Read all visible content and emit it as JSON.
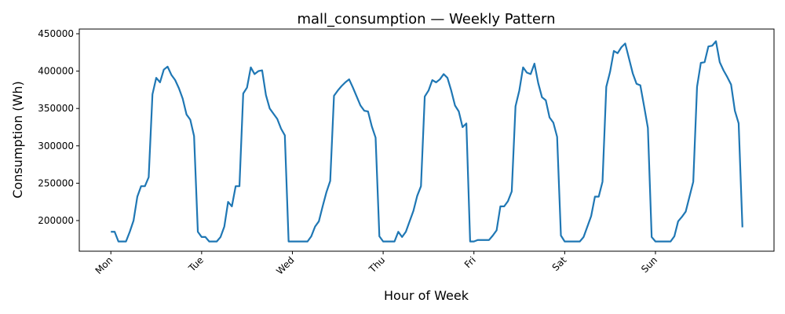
{
  "chart_data": {
    "type": "line",
    "title": "mall_consumption — Weekly Pattern",
    "x_label": "Hour of Week",
    "y_label": "Consumption (Wh)",
    "color": "#1f77b4",
    "x": [
      0,
      1,
      2,
      3,
      4,
      5,
      6,
      7,
      8,
      9,
      10,
      11,
      12,
      13,
      14,
      15,
      16,
      17,
      18,
      19,
      20,
      21,
      22,
      23,
      24,
      25,
      26,
      27,
      28,
      29,
      30,
      31,
      32,
      33,
      34,
      35,
      36,
      37,
      38,
      39,
      40,
      41,
      42,
      43,
      44,
      45,
      46,
      47,
      48,
      49,
      50,
      51,
      52,
      53,
      54,
      55,
      56,
      57,
      58,
      59,
      60,
      61,
      62,
      63,
      64,
      65,
      66,
      67,
      68,
      69,
      70,
      71,
      72,
      73,
      74,
      75,
      76,
      77,
      78,
      79,
      80,
      81,
      82,
      83,
      84,
      85,
      86,
      87,
      88,
      89,
      90,
      91,
      92,
      93,
      94,
      95,
      96,
      97,
      98,
      99,
      100,
      101,
      102,
      103,
      104,
      105,
      106,
      107,
      108,
      109,
      110,
      111,
      112,
      113,
      114,
      115,
      116,
      117,
      118,
      119,
      120,
      121,
      122,
      123,
      124,
      125,
      126,
      127,
      128,
      129,
      130,
      131,
      132,
      133,
      134,
      135,
      136,
      137,
      138,
      139,
      140,
      141,
      142,
      143,
      144,
      145,
      146,
      147,
      148,
      149,
      150,
      151,
      152,
      153,
      154,
      155,
      156,
      157,
      158,
      159,
      160,
      161,
      162,
      163,
      164,
      165,
      166,
      167
    ],
    "values": [
      185000,
      185000,
      172000,
      172000,
      172000,
      185000,
      200000,
      232000,
      246000,
      246000,
      258000,
      369000,
      391000,
      385000,
      402000,
      406000,
      395000,
      388000,
      377000,
      363000,
      342000,
      335000,
      313000,
      185000,
      178000,
      178000,
      172000,
      172000,
      172000,
      178000,
      192000,
      225000,
      219000,
      246000,
      246000,
      370000,
      378000,
      405000,
      396000,
      400000,
      401000,
      368000,
      350000,
      343000,
      336000,
      323000,
      314000,
      172000,
      172000,
      172000,
      172000,
      172000,
      172000,
      179000,
      192000,
      199000,
      219000,
      238000,
      253000,
      367000,
      374000,
      380000,
      385000,
      389000,
      378000,
      366000,
      354000,
      347000,
      346000,
      326000,
      311000,
      179000,
      172000,
      172000,
      172000,
      172000,
      185000,
      178000,
      185000,
      199000,
      213000,
      233000,
      246000,
      366000,
      374000,
      388000,
      385000,
      389000,
      396000,
      391000,
      374000,
      354000,
      346000,
      325000,
      330000,
      172000,
      172000,
      174000,
      174000,
      174000,
      174000,
      180000,
      187000,
      219000,
      219000,
      226000,
      239000,
      353000,
      374000,
      405000,
      398000,
      396000,
      410000,
      384000,
      365000,
      361000,
      338000,
      331000,
      312000,
      180000,
      172000,
      172000,
      172000,
      172000,
      172000,
      178000,
      192000,
      206000,
      232000,
      232000,
      252000,
      379000,
      399000,
      427000,
      424000,
      432000,
      437000,
      417000,
      397000,
      383000,
      381000,
      353000,
      324000,
      178000,
      172000,
      172000,
      172000,
      172000,
      172000,
      179000,
      199000,
      205000,
      212000,
      232000,
      252000,
      379000,
      411000,
      412000,
      433000,
      434000,
      440000,
      412000,
      401000,
      392000,
      382000,
      347000,
      330000,
      191000
    ],
    "xlim": [
      -8.35,
      175.35
    ],
    "xticks": [
      {
        "value": 0,
        "label": "Mon"
      },
      {
        "value": 24,
        "label": "Tue"
      },
      {
        "value": 48,
        "label": "Wed"
      },
      {
        "value": 72,
        "label": "Thu"
      },
      {
        "value": 96,
        "label": "Fri"
      },
      {
        "value": 120,
        "label": "Sat"
      },
      {
        "value": 144,
        "label": "Sun"
      }
    ],
    "ylim": [
      159000,
      456300
    ],
    "yticks": [
      200000,
      250000,
      300000,
      350000,
      400000,
      450000
    ]
  }
}
